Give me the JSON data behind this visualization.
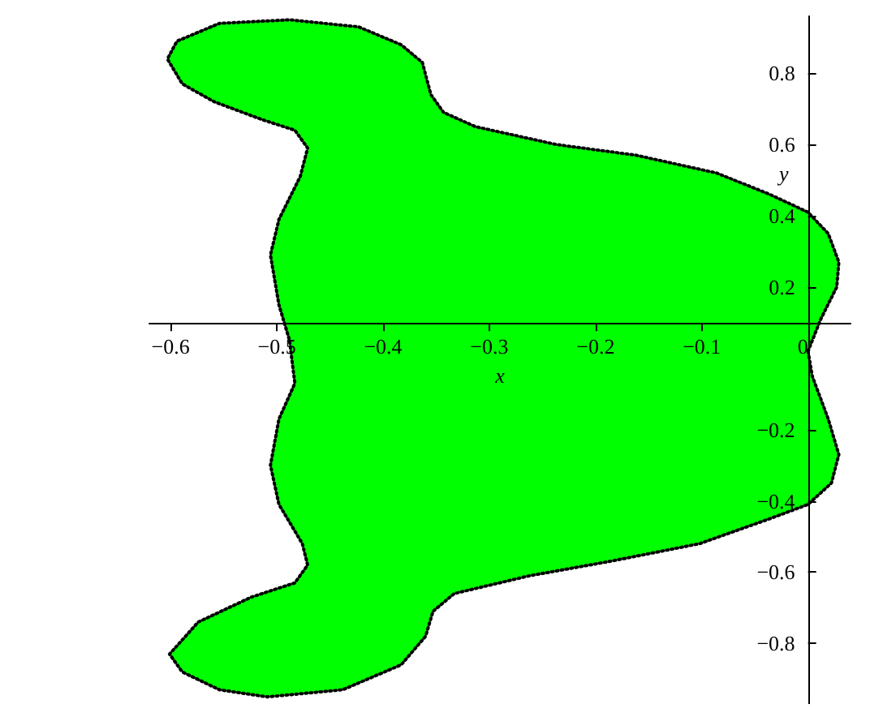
{
  "chart_data": {
    "type": "area",
    "xlabel": "x",
    "ylabel": "y",
    "xlim": [
      -0.62,
      0.04
    ],
    "ylim": [
      -0.97,
      0.96
    ],
    "xticks": [
      {
        "value": -0.6,
        "label": "−0.6"
      },
      {
        "value": -0.5,
        "label": "−0.5"
      },
      {
        "value": -0.4,
        "label": "−0.4"
      },
      {
        "value": -0.3,
        "label": "−0.3"
      },
      {
        "value": -0.2,
        "label": "−0.2"
      },
      {
        "value": -0.1,
        "label": "−0.1"
      },
      0
    ],
    "yticks": [
      {
        "value": -0.8,
        "label": "−0.8"
      },
      {
        "value": -0.6,
        "label": "−0.6"
      },
      {
        "value": -0.4,
        "label": "−0.4"
      },
      {
        "value": -0.2,
        "label": "−0.2"
      },
      0.2,
      0.4,
      0.6,
      0.8
    ],
    "grid": false,
    "line_style": "dotted",
    "series": [
      {
        "color": "#00ff00",
        "x": [
          0,
          0.012,
          0.027,
          0.029,
          0.019,
          0,
          -0.036,
          -0.086,
          -0.162,
          -0.237,
          -0.313,
          -0.343,
          -0.355,
          -0.363,
          -0.383,
          -0.423,
          -0.488,
          -0.554,
          -0.594,
          -0.603,
          -0.589,
          -0.559,
          -0.514,
          -0.483,
          -0.471,
          -0.478,
          -0.498,
          -0.506,
          -0.498,
          -0.488,
          -0.486,
          -0.483,
          -0.498,
          -0.506,
          -0.498,
          -0.476,
          -0.471,
          -0.483,
          -0.524,
          -0.574,
          -0.601,
          -0.589,
          -0.554,
          -0.509,
          -0.438,
          -0.383,
          -0.36,
          -0.353,
          -0.333,
          -0.262,
          -0.187,
          -0.102,
          -0.036,
          0,
          0.022,
          0.029,
          0.019,
          0.004,
          0
        ],
        "values": [
          0.02,
          0.11,
          0.2,
          0.27,
          0.35,
          0.41,
          0.46,
          0.52,
          0.57,
          0.6,
          0.65,
          0.69,
          0.74,
          0.83,
          0.88,
          0.93,
          0.95,
          0.94,
          0.89,
          0.84,
          0.77,
          0.72,
          0.67,
          0.64,
          0.59,
          0.51,
          0.39,
          0.29,
          0.15,
          0.05,
          0,
          -0.07,
          -0.17,
          -0.3,
          -0.41,
          -0.52,
          -0.58,
          -0.63,
          -0.67,
          -0.74,
          -0.83,
          -0.88,
          -0.93,
          -0.95,
          -0.93,
          -0.86,
          -0.78,
          -0.71,
          -0.66,
          -0.61,
          -0.57,
          -0.52,
          -0.45,
          -0.41,
          -0.35,
          -0.27,
          -0.17,
          -0.05,
          0.02
        ]
      }
    ]
  }
}
